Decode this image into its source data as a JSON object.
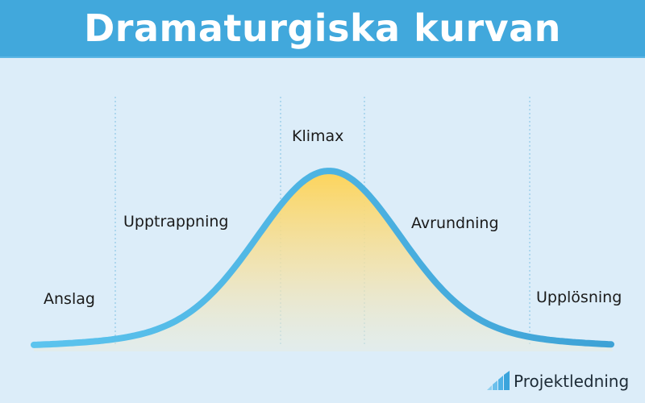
{
  "header": {
    "title": "Dramaturgiska kurvan"
  },
  "stages": [
    {
      "label": "Anslag"
    },
    {
      "label": "Upptrappning"
    },
    {
      "label": "Klimax"
    },
    {
      "label": "Avrundning"
    },
    {
      "label": "Upplösning"
    }
  ],
  "logo": {
    "text": "Projektledning",
    "icon": "bar-chart-icon"
  },
  "colors": {
    "header": "#41a8dc",
    "background": "#dcedf9",
    "curve": "#4cb4e4",
    "fill_top": "#fdd45a"
  }
}
